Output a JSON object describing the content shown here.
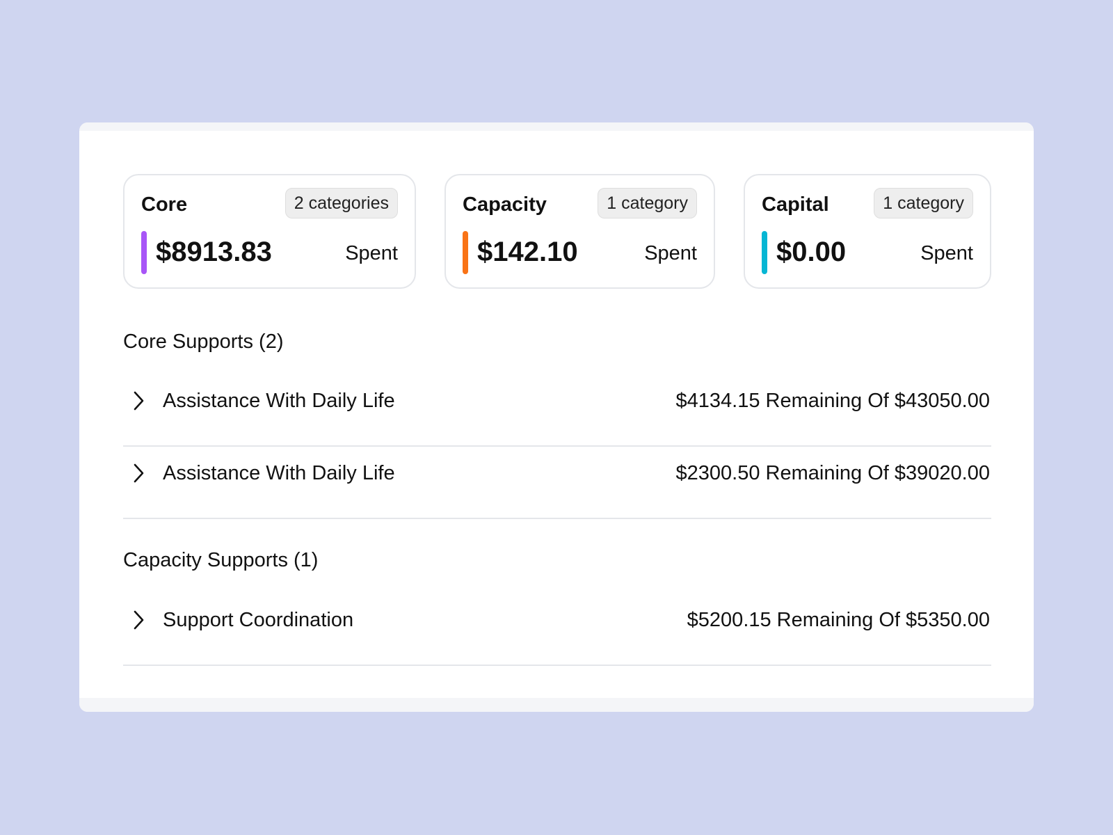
{
  "summary": [
    {
      "title": "Core",
      "badge": "2 categories",
      "amount": "$8913.83",
      "spent_label": "Spent",
      "color": "#a855f7"
    },
    {
      "title": "Capacity",
      "badge": "1 category",
      "amount": "$142.10",
      "spent_label": "Spent",
      "color": "#f97316"
    },
    {
      "title": "Capital",
      "badge": "1 category",
      "amount": "$0.00",
      "spent_label": "Spent",
      "color": "#06b6d4"
    }
  ],
  "sections": [
    {
      "title": "Core Supports (2)",
      "rows": [
        {
          "name": "Assistance With Daily Life",
          "value": "$4134.15 Remaining Of $43050.00",
          "icon": "chevron-right-icon"
        },
        {
          "name": "Assistance With Daily Life",
          "value": "$2300.50 Remaining Of $39020.00",
          "icon": "chevron-right-icon"
        }
      ]
    },
    {
      "title": "Capacity Supports (1)",
      "rows": [
        {
          "name": "Support Coordination",
          "value": "$5200.15 Remaining Of $5350.00",
          "icon": "chevron-right-icon"
        }
      ]
    }
  ]
}
